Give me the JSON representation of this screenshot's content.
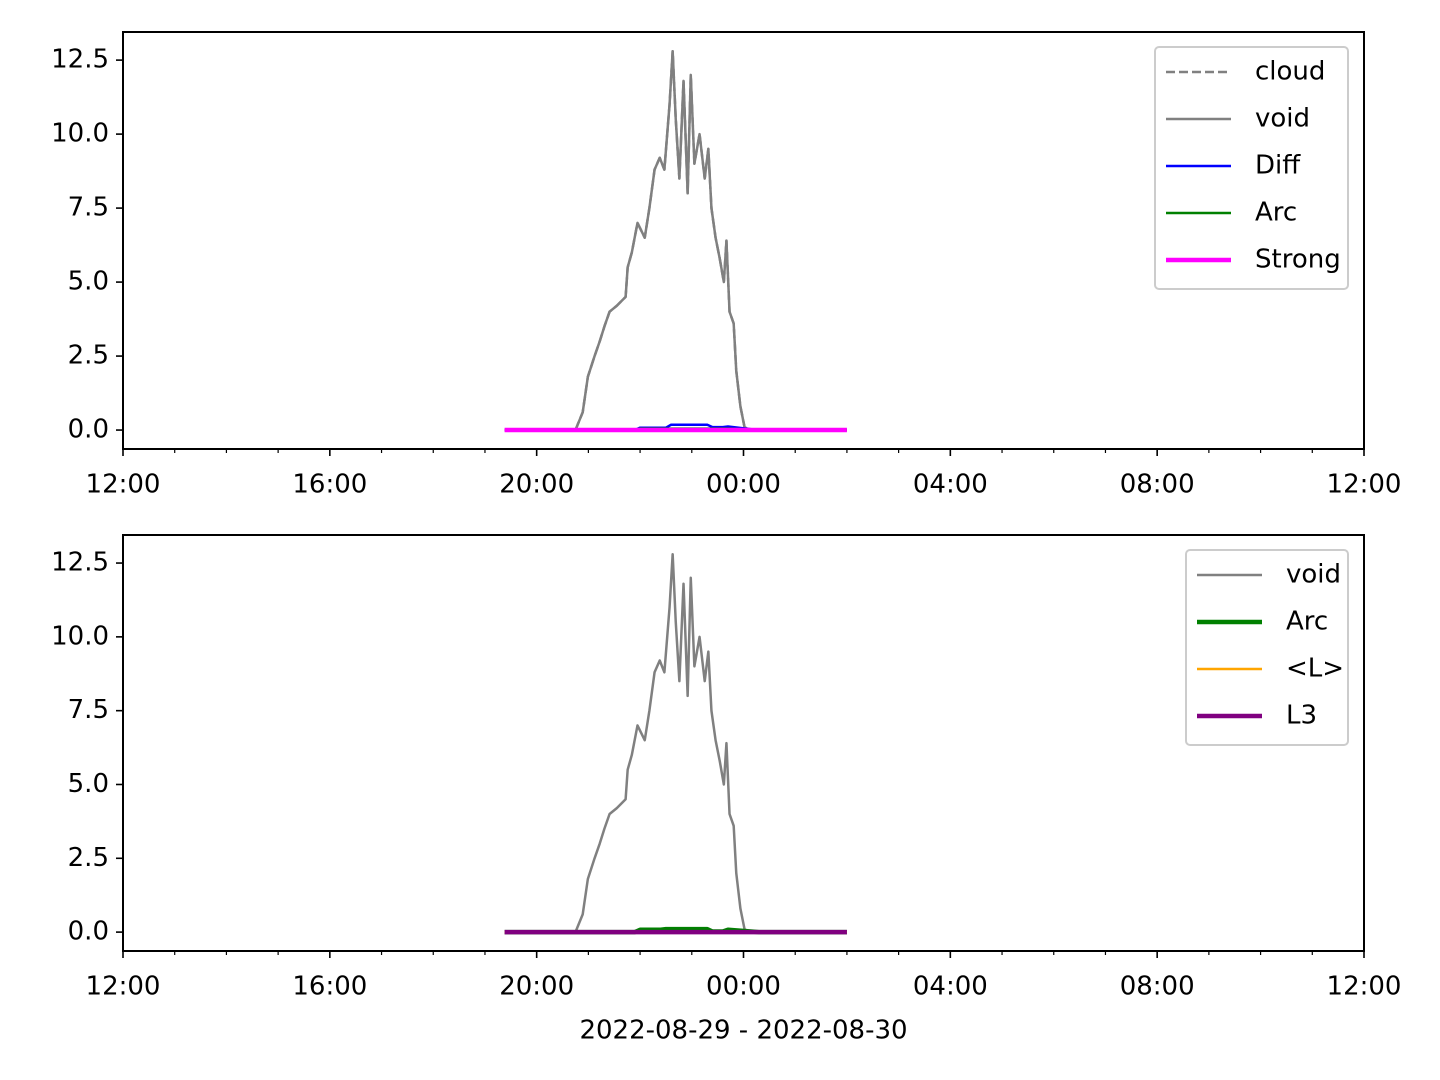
{
  "chart_data": [
    {
      "type": "line",
      "xlim": [
        0,
        24
      ],
      "xticks": [
        {
          "value": 0,
          "label": "12:00"
        },
        {
          "value": 4,
          "label": "16:00"
        },
        {
          "value": 8,
          "label": "20:00"
        },
        {
          "value": 12,
          "label": "00:00"
        },
        {
          "value": 16,
          "label": "04:00"
        },
        {
          "value": 20,
          "label": "08:00"
        },
        {
          "value": 24,
          "label": "12:00"
        }
      ],
      "xminorticks": [
        1,
        2,
        3,
        5,
        6,
        7,
        9,
        10,
        11,
        13,
        14,
        15,
        17,
        18,
        19,
        21,
        22,
        23
      ],
      "ylim": [
        -0.64,
        13.45
      ],
      "yticks": [
        {
          "value": 0,
          "label": "0.0"
        },
        2.5,
        {
          "value": 5,
          "label": "5.0"
        },
        7.5,
        {
          "value": 10,
          "label": "10.0"
        },
        12.5
      ],
      "legend": "upper right",
      "series": [
        {
          "name": "cloud",
          "color": "#808080",
          "dash": true,
          "width": 2.5,
          "x": [
            8.75,
            8.89,
            8.99,
            9.12,
            9.22,
            9.31,
            9.41,
            9.55,
            9.72,
            9.76,
            9.84,
            9.95,
            10.09,
            10.18,
            10.28,
            10.38,
            10.47,
            10.57,
            10.63,
            10.69,
            10.76,
            10.84,
            10.92,
            10.98,
            11.05,
            11.15,
            11.25,
            11.32,
            11.38,
            11.46,
            11.54,
            11.62,
            11.67,
            11.73,
            11.81,
            11.86,
            11.94,
            12.02,
            12.12,
            12.31
          ],
          "values": [
            0,
            0.6,
            1.8,
            2.5,
            3.0,
            3.5,
            4.0,
            4.2,
            4.5,
            5.5,
            6.0,
            7.0,
            6.5,
            7.5,
            8.8,
            9.2,
            8.8,
            11.0,
            12.8,
            10.5,
            8.5,
            11.8,
            8.0,
            12.0,
            9.0,
            10.0,
            8.5,
            9.5,
            7.5,
            6.5,
            5.8,
            5.0,
            6.4,
            4.0,
            3.6,
            2.0,
            0.8,
            0.1,
            0,
            0
          ]
        },
        {
          "name": "void",
          "color": "#808080",
          "dash": false,
          "width": 2.5,
          "x": [
            8.75,
            8.89,
            8.99,
            9.12,
            9.22,
            9.31,
            9.41,
            9.55,
            9.72,
            9.76,
            9.84,
            9.95,
            10.09,
            10.18,
            10.28,
            10.38,
            10.47,
            10.57,
            10.63,
            10.69,
            10.76,
            10.84,
            10.92,
            10.98,
            11.05,
            11.15,
            11.25,
            11.32,
            11.38,
            11.46,
            11.54,
            11.62,
            11.67,
            11.73,
            11.81,
            11.86,
            11.94,
            12.02,
            12.12,
            12.31
          ],
          "values": [
            0,
            0.6,
            1.8,
            2.5,
            3.0,
            3.5,
            4.0,
            4.2,
            4.5,
            5.5,
            6.0,
            7.0,
            6.5,
            7.5,
            8.8,
            9.2,
            8.8,
            11.0,
            12.8,
            10.5,
            8.5,
            11.8,
            8.0,
            12.0,
            9.0,
            10.0,
            8.5,
            9.5,
            7.5,
            6.5,
            5.8,
            5.0,
            6.4,
            4.0,
            3.6,
            2.0,
            0.8,
            0.1,
            0,
            0
          ]
        },
        {
          "name": "Diff",
          "color": "#0000ff",
          "dash": false,
          "width": 2.5,
          "x": [
            7.38,
            9.9,
            10.0,
            10.5,
            10.6,
            11.3,
            11.4,
            11.6,
            11.7,
            12.3,
            14
          ],
          "values": [
            0,
            0,
            0.08,
            0.08,
            0.18,
            0.18,
            0.1,
            0.1,
            0.12,
            0,
            0
          ]
        },
        {
          "name": "Arc",
          "color": "#008000",
          "dash": false,
          "width": 2.5,
          "x": [
            7.38,
            9.9,
            10.0,
            11.6,
            11.7,
            12.3,
            14
          ],
          "values": [
            0,
            0,
            0.05,
            0.05,
            0.05,
            0,
            0
          ]
        },
        {
          "name": "Strong",
          "color": "#ff00ff",
          "dash": false,
          "width": 4.5,
          "x": [
            7.38,
            14
          ],
          "values": [
            0,
            0
          ]
        }
      ]
    },
    {
      "type": "line",
      "xlim": [
        0,
        24
      ],
      "xticks": [
        {
          "value": 0,
          "label": "12:00"
        },
        {
          "value": 4,
          "label": "16:00"
        },
        {
          "value": 8,
          "label": "20:00"
        },
        {
          "value": 12,
          "label": "00:00"
        },
        {
          "value": 16,
          "label": "04:00"
        },
        {
          "value": 20,
          "label": "08:00"
        },
        {
          "value": 24,
          "label": "12:00"
        }
      ],
      "xminorticks": [
        1,
        2,
        3,
        5,
        6,
        7,
        9,
        10,
        11,
        13,
        14,
        15,
        17,
        18,
        19,
        21,
        22,
        23
      ],
      "ylim": [
        -0.64,
        13.45
      ],
      "yticks": [
        {
          "value": 0,
          "label": "0.0"
        },
        2.5,
        {
          "value": 5,
          "label": "5.0"
        },
        7.5,
        {
          "value": 10,
          "label": "10.0"
        },
        12.5
      ],
      "xlabel": "2022-08-29 - 2022-08-30",
      "legend": "upper right",
      "series": [
        {
          "name": "void",
          "color": "#808080",
          "dash": false,
          "width": 2.5,
          "x": [
            8.75,
            8.89,
            8.99,
            9.12,
            9.22,
            9.31,
            9.41,
            9.55,
            9.72,
            9.76,
            9.84,
            9.95,
            10.09,
            10.18,
            10.28,
            10.38,
            10.47,
            10.57,
            10.63,
            10.69,
            10.76,
            10.84,
            10.92,
            10.98,
            11.05,
            11.15,
            11.25,
            11.32,
            11.38,
            11.46,
            11.54,
            11.62,
            11.67,
            11.73,
            11.81,
            11.86,
            11.94,
            12.02,
            12.12,
            12.31
          ],
          "values": [
            0,
            0.6,
            1.8,
            2.5,
            3.0,
            3.5,
            4.0,
            4.2,
            4.5,
            5.5,
            6.0,
            7.0,
            6.5,
            7.5,
            8.8,
            9.2,
            8.8,
            11.0,
            12.8,
            10.5,
            8.5,
            11.8,
            8.0,
            12.0,
            9.0,
            10.0,
            8.5,
            9.5,
            7.5,
            6.5,
            5.8,
            5.0,
            6.4,
            4.0,
            3.6,
            2.0,
            0.8,
            0.1,
            0,
            0
          ]
        },
        {
          "name": "Arc",
          "color": "#008000",
          "dash": false,
          "width": 4.5,
          "x": [
            7.38,
            9.9,
            10.0,
            10.4,
            10.5,
            11.3,
            11.4,
            11.6,
            11.7,
            12.3,
            14
          ],
          "values": [
            0,
            0,
            0.08,
            0.08,
            0.1,
            0.1,
            0.02,
            0.02,
            0.08,
            0,
            0
          ]
        },
        {
          "name": "<L>",
          "color": "#ffa500",
          "dash": false,
          "width": 2.5,
          "x": [
            7.38,
            14
          ],
          "values": [
            0,
            0
          ]
        },
        {
          "name": "L3",
          "color": "#800080",
          "dash": false,
          "width": 4.5,
          "x": [
            7.38,
            14
          ],
          "values": [
            0,
            0
          ]
        }
      ]
    }
  ]
}
